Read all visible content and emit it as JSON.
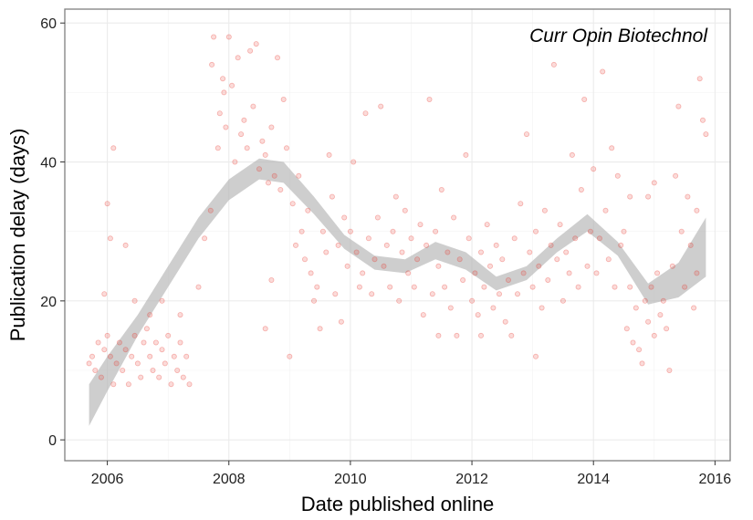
{
  "chart_data": {
    "type": "scatter",
    "title": "",
    "annotation": "Curr Opin Biotechnol",
    "xlabel": "Date published online",
    "ylabel": "Publication delay (days)",
    "xlim": [
      2005.3,
      2016.25
    ],
    "ylim": [
      -3,
      62
    ],
    "x_ticks": [
      2006,
      2008,
      2010,
      2012,
      2014,
      2016
    ],
    "y_ticks": [
      0,
      20,
      40,
      60
    ],
    "grid": true,
    "legend": "none",
    "point_color": "#e8362e",
    "band_color": "#b3b3b3",
    "series": [
      {
        "points": [
          [
            2005.7,
            11
          ],
          [
            2005.75,
            12
          ],
          [
            2005.8,
            10
          ],
          [
            2005.85,
            14
          ],
          [
            2005.9,
            9
          ],
          [
            2005.95,
            13
          ],
          [
            2006.0,
            15
          ],
          [
            2006.05,
            12
          ],
          [
            2006.1,
            8
          ],
          [
            2006.15,
            11
          ],
          [
            2006.2,
            14
          ],
          [
            2006.25,
            10
          ],
          [
            2006.3,
            13
          ],
          [
            2006.35,
            8
          ],
          [
            2006.4,
            12
          ],
          [
            2006.45,
            15
          ],
          [
            2006.5,
            11
          ],
          [
            2006.55,
            9
          ],
          [
            2006.6,
            14
          ],
          [
            2006.65,
            16
          ],
          [
            2006.7,
            12
          ],
          [
            2006.75,
            10
          ],
          [
            2006.8,
            14
          ],
          [
            2006.85,
            9
          ],
          [
            2006.9,
            13
          ],
          [
            2006.95,
            11
          ],
          [
            2007.0,
            15
          ],
          [
            2007.05,
            8
          ],
          [
            2007.1,
            12
          ],
          [
            2007.15,
            10
          ],
          [
            2007.2,
            14
          ],
          [
            2007.25,
            9
          ],
          [
            2007.3,
            12
          ],
          [
            2007.35,
            8
          ],
          [
            2005.95,
            21
          ],
          [
            2006.0,
            34
          ],
          [
            2006.05,
            29
          ],
          [
            2006.1,
            42
          ],
          [
            2006.3,
            28
          ],
          [
            2006.45,
            20
          ],
          [
            2006.7,
            18
          ],
          [
            2006.9,
            20
          ],
          [
            2007.2,
            18
          ],
          [
            2007.5,
            22
          ],
          [
            2007.6,
            29
          ],
          [
            2007.7,
            33
          ],
          [
            2007.72,
            54
          ],
          [
            2007.75,
            58
          ],
          [
            2007.82,
            42
          ],
          [
            2007.85,
            47
          ],
          [
            2007.9,
            52
          ],
          [
            2007.92,
            50
          ],
          [
            2007.95,
            45
          ],
          [
            2008.0,
            58
          ],
          [
            2008.05,
            51
          ],
          [
            2008.1,
            40
          ],
          [
            2008.15,
            55
          ],
          [
            2008.2,
            44
          ],
          [
            2008.25,
            46
          ],
          [
            2008.3,
            42
          ],
          [
            2008.35,
            56
          ],
          [
            2008.4,
            48
          ],
          [
            2008.45,
            57
          ],
          [
            2008.5,
            39
          ],
          [
            2008.55,
            43
          ],
          [
            2008.6,
            41
          ],
          [
            2008.65,
            37
          ],
          [
            2008.7,
            45
          ],
          [
            2008.75,
            38
          ],
          [
            2008.8,
            55
          ],
          [
            2008.85,
            36
          ],
          [
            2008.9,
            49
          ],
          [
            2008.95,
            42
          ],
          [
            2009.0,
            12
          ],
          [
            2008.6,
            16
          ],
          [
            2008.7,
            23
          ],
          [
            2009.05,
            34
          ],
          [
            2009.1,
            28
          ],
          [
            2009.15,
            38
          ],
          [
            2009.2,
            30
          ],
          [
            2009.25,
            26
          ],
          [
            2009.3,
            33
          ],
          [
            2009.35,
            24
          ],
          [
            2009.4,
            20
          ],
          [
            2009.45,
            22
          ],
          [
            2009.5,
            16
          ],
          [
            2009.55,
            30
          ],
          [
            2009.6,
            27
          ],
          [
            2009.65,
            41
          ],
          [
            2009.7,
            35
          ],
          [
            2009.75,
            21
          ],
          [
            2009.8,
            28
          ],
          [
            2009.85,
            17
          ],
          [
            2009.9,
            32
          ],
          [
            2009.95,
            25
          ],
          [
            2010.0,
            30
          ],
          [
            2010.05,
            40
          ],
          [
            2010.1,
            27
          ],
          [
            2010.15,
            22
          ],
          [
            2010.2,
            24
          ],
          [
            2010.25,
            47
          ],
          [
            2010.3,
            29
          ],
          [
            2010.35,
            21
          ],
          [
            2010.4,
            26
          ],
          [
            2010.45,
            32
          ],
          [
            2010.5,
            48
          ],
          [
            2010.55,
            25
          ],
          [
            2010.6,
            28
          ],
          [
            2010.65,
            22
          ],
          [
            2010.7,
            30
          ],
          [
            2010.75,
            35
          ],
          [
            2010.8,
            20
          ],
          [
            2010.85,
            27
          ],
          [
            2010.9,
            33
          ],
          [
            2010.95,
            24
          ],
          [
            2011.0,
            29
          ],
          [
            2011.05,
            22
          ],
          [
            2011.1,
            26
          ],
          [
            2011.15,
            31
          ],
          [
            2011.2,
            18
          ],
          [
            2011.25,
            28
          ],
          [
            2011.3,
            49
          ],
          [
            2011.35,
            21
          ],
          [
            2011.4,
            30
          ],
          [
            2011.45,
            25
          ],
          [
            2011.5,
            36
          ],
          [
            2011.55,
            22
          ],
          [
            2011.6,
            27
          ],
          [
            2011.65,
            19
          ],
          [
            2011.7,
            32
          ],
          [
            2011.75,
            15
          ],
          [
            2011.8,
            26
          ],
          [
            2011.85,
            23
          ],
          [
            2011.9,
            41
          ],
          [
            2011.95,
            29
          ],
          [
            2012.0,
            20
          ],
          [
            2012.05,
            24
          ],
          [
            2012.1,
            18
          ],
          [
            2012.15,
            27
          ],
          [
            2012.2,
            22
          ],
          [
            2012.25,
            31
          ],
          [
            2012.3,
            25
          ],
          [
            2012.35,
            19
          ],
          [
            2012.4,
            28
          ],
          [
            2012.45,
            21
          ],
          [
            2012.5,
            26
          ],
          [
            2012.55,
            17
          ],
          [
            2012.6,
            23
          ],
          [
            2012.65,
            15
          ],
          [
            2012.7,
            29
          ],
          [
            2012.75,
            21
          ],
          [
            2012.8,
            34
          ],
          [
            2012.85,
            24
          ],
          [
            2012.9,
            44
          ],
          [
            2012.95,
            27
          ],
          [
            2013.0,
            22
          ],
          [
            2013.05,
            30
          ],
          [
            2013.1,
            25
          ],
          [
            2013.15,
            19
          ],
          [
            2013.2,
            33
          ],
          [
            2013.25,
            23
          ],
          [
            2013.3,
            28
          ],
          [
            2013.35,
            54
          ],
          [
            2013.4,
            26
          ],
          [
            2013.45,
            31
          ],
          [
            2013.5,
            20
          ],
          [
            2013.55,
            27
          ],
          [
            2013.6,
            24
          ],
          [
            2013.65,
            41
          ],
          [
            2013.7,
            29
          ],
          [
            2013.75,
            22
          ],
          [
            2013.8,
            36
          ],
          [
            2013.85,
            49
          ],
          [
            2013.9,
            25
          ],
          [
            2013.95,
            30
          ],
          [
            2014.0,
            39
          ],
          [
            2014.05,
            24
          ],
          [
            2014.1,
            29
          ],
          [
            2014.15,
            53
          ],
          [
            2014.2,
            33
          ],
          [
            2014.25,
            26
          ],
          [
            2014.3,
            42
          ],
          [
            2014.35,
            22
          ],
          [
            2014.4,
            38
          ],
          [
            2014.45,
            28
          ],
          [
            2014.5,
            30
          ],
          [
            2014.55,
            16
          ],
          [
            2014.6,
            22
          ],
          [
            2014.65,
            14
          ],
          [
            2014.7,
            19
          ],
          [
            2014.75,
            13
          ],
          [
            2014.8,
            11
          ],
          [
            2014.85,
            20
          ],
          [
            2014.9,
            17
          ],
          [
            2014.95,
            22
          ],
          [
            2015.0,
            15
          ],
          [
            2015.05,
            24
          ],
          [
            2015.1,
            18
          ],
          [
            2015.15,
            20
          ],
          [
            2015.2,
            16
          ],
          [
            2015.25,
            10
          ],
          [
            2015.3,
            25
          ],
          [
            2015.35,
            38
          ],
          [
            2015.4,
            48
          ],
          [
            2015.45,
            30
          ],
          [
            2015.5,
            22
          ],
          [
            2015.55,
            35
          ],
          [
            2015.6,
            28
          ],
          [
            2015.65,
            19
          ],
          [
            2015.7,
            24
          ],
          [
            2015.75,
            52
          ],
          [
            2015.8,
            46
          ],
          [
            2015.85,
            44
          ],
          [
            2015.7,
            33
          ],
          [
            2014.9,
            35
          ],
          [
            2015.0,
            37
          ],
          [
            2014.6,
            35
          ],
          [
            2013.05,
            12
          ],
          [
            2012.15,
            15
          ],
          [
            2011.45,
            15
          ]
        ]
      }
    ],
    "smooth": {
      "x": [
        2005.7,
        2006.0,
        2006.5,
        2007.0,
        2007.5,
        2008.0,
        2008.5,
        2008.9,
        2009.4,
        2009.9,
        2010.4,
        2010.9,
        2011.4,
        2011.9,
        2012.4,
        2012.9,
        2013.4,
        2013.9,
        2014.4,
        2014.9,
        2015.4,
        2015.85
      ],
      "lower": [
        2,
        7,
        15,
        22,
        29,
        34.5,
        37.5,
        37,
        32.5,
        27.5,
        24.5,
        24,
        26,
        24.5,
        21.5,
        23,
        27,
        30,
        26.5,
        19.5,
        20.5,
        23.5
      ],
      "upper": [
        8,
        12,
        18,
        25,
        32,
        37.5,
        40.5,
        40,
        35,
        29.5,
        26.5,
        26,
        28.5,
        27,
        23.5,
        25,
        29,
        32.5,
        28.5,
        22.5,
        25.5,
        32
      ]
    }
  }
}
